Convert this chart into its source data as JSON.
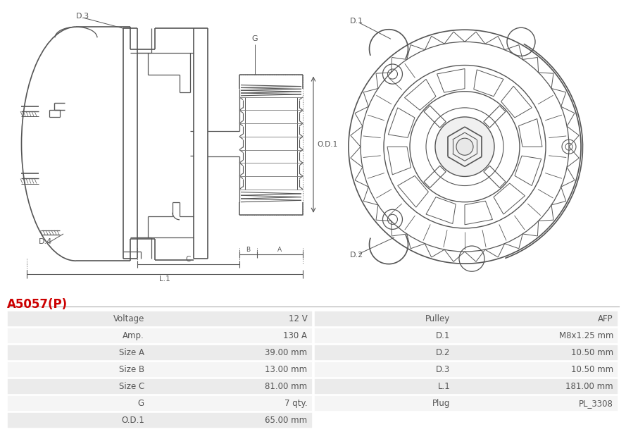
{
  "title": "A5057(P)",
  "title_color": "#cc0000",
  "table_rows": [
    [
      "Voltage",
      "12 V",
      "Pulley",
      "AFP"
    ],
    [
      "Amp.",
      "130 A",
      "D.1",
      "M8x1.25 mm"
    ],
    [
      "Size A",
      "39.00 mm",
      "D.2",
      "10.50 mm"
    ],
    [
      "Size B",
      "13.00 mm",
      "D.3",
      "10.50 mm"
    ],
    [
      "Size C",
      "81.00 mm",
      "L.1",
      "181.00 mm"
    ],
    [
      "G",
      "7 qty.",
      "Plug",
      "PL_3308"
    ],
    [
      "O.D.1",
      "65.00 mm",
      "",
      ""
    ]
  ],
  "fig_width": 8.89,
  "fig_height": 6.23,
  "bg": "#ffffff",
  "lc": "#555555",
  "dim_lc": "#666666",
  "text_color": "#555555",
  "row_colors": [
    "#ebebeb",
    "#f5f5f5"
  ]
}
